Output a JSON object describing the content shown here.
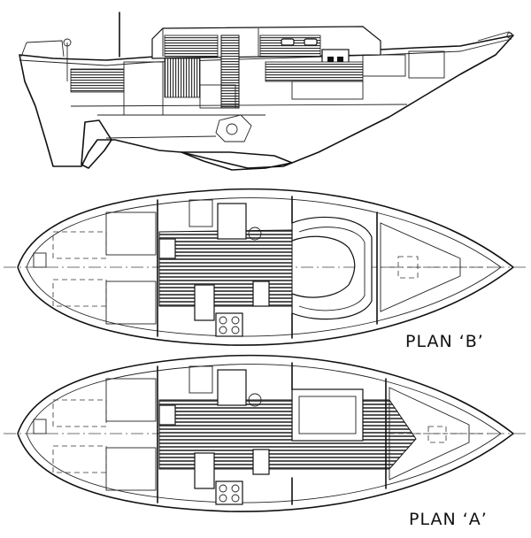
{
  "labels": {
    "plan_b": "PLAN ‘B’",
    "plan_a": "PLAN ‘A’"
  },
  "colors": {
    "ink": "#111111",
    "paper": "#ffffff"
  }
}
